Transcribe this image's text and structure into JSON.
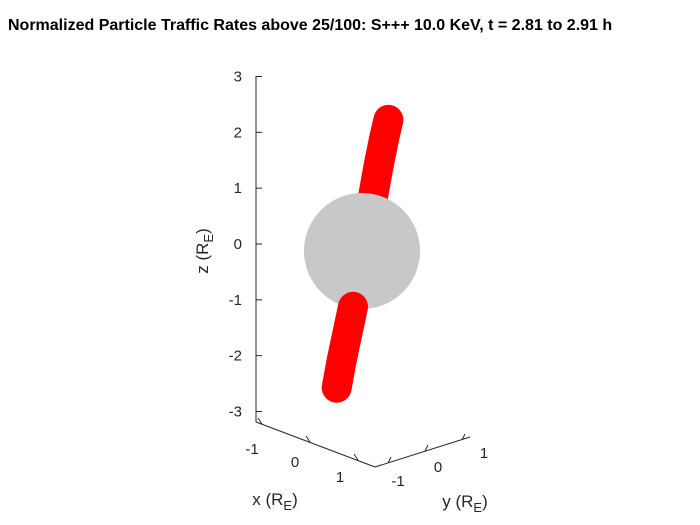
{
  "chart_data": {
    "type": "scatter",
    "title": "Normalized Particle Traffic Rates above 25/100: S+++ 10.0 KeV, t = 2.81 to 2.91 h",
    "projection": "3d",
    "xlabel": {
      "base": "x (R",
      "sub": "E",
      "close": ")"
    },
    "ylabel": {
      "base": "y (R",
      "sub": "E",
      "close": ")"
    },
    "zlabel": {
      "base": "z (R",
      "sub": "E",
      "close": ")"
    },
    "xticks": [
      "-1",
      "0",
      "1"
    ],
    "yticks": [
      "-1",
      "0",
      "1"
    ],
    "zticks": [
      "3",
      "2",
      "1",
      "0",
      "-1",
      "-2",
      "-3"
    ],
    "zlim": [
      -3,
      3
    ],
    "grid": false,
    "colors": {
      "traffic": "#ff0000",
      "earth": "#c8c8c8",
      "axes": "#262626"
    },
    "series": [
      {
        "points": [
          {
            "x": 0.15,
            "y": 0.1,
            "z": 1.0
          },
          {
            "x": 0.22,
            "y": 0.14,
            "z": 1.5
          },
          {
            "x": 0.3,
            "y": 0.18,
            "z": 2.0
          },
          {
            "x": 0.36,
            "y": 0.22,
            "z": 2.35
          },
          {
            "x": -0.12,
            "y": -0.08,
            "z": -1.0
          },
          {
            "x": -0.2,
            "y": -0.13,
            "z": -1.5
          },
          {
            "x": -0.28,
            "y": -0.18,
            "z": -2.0
          },
          {
            "x": -0.34,
            "y": -0.22,
            "z": -2.45
          }
        ]
      }
    ],
    "earth": {
      "radius": 1.0,
      "center": [
        0,
        0,
        0
      ]
    }
  }
}
